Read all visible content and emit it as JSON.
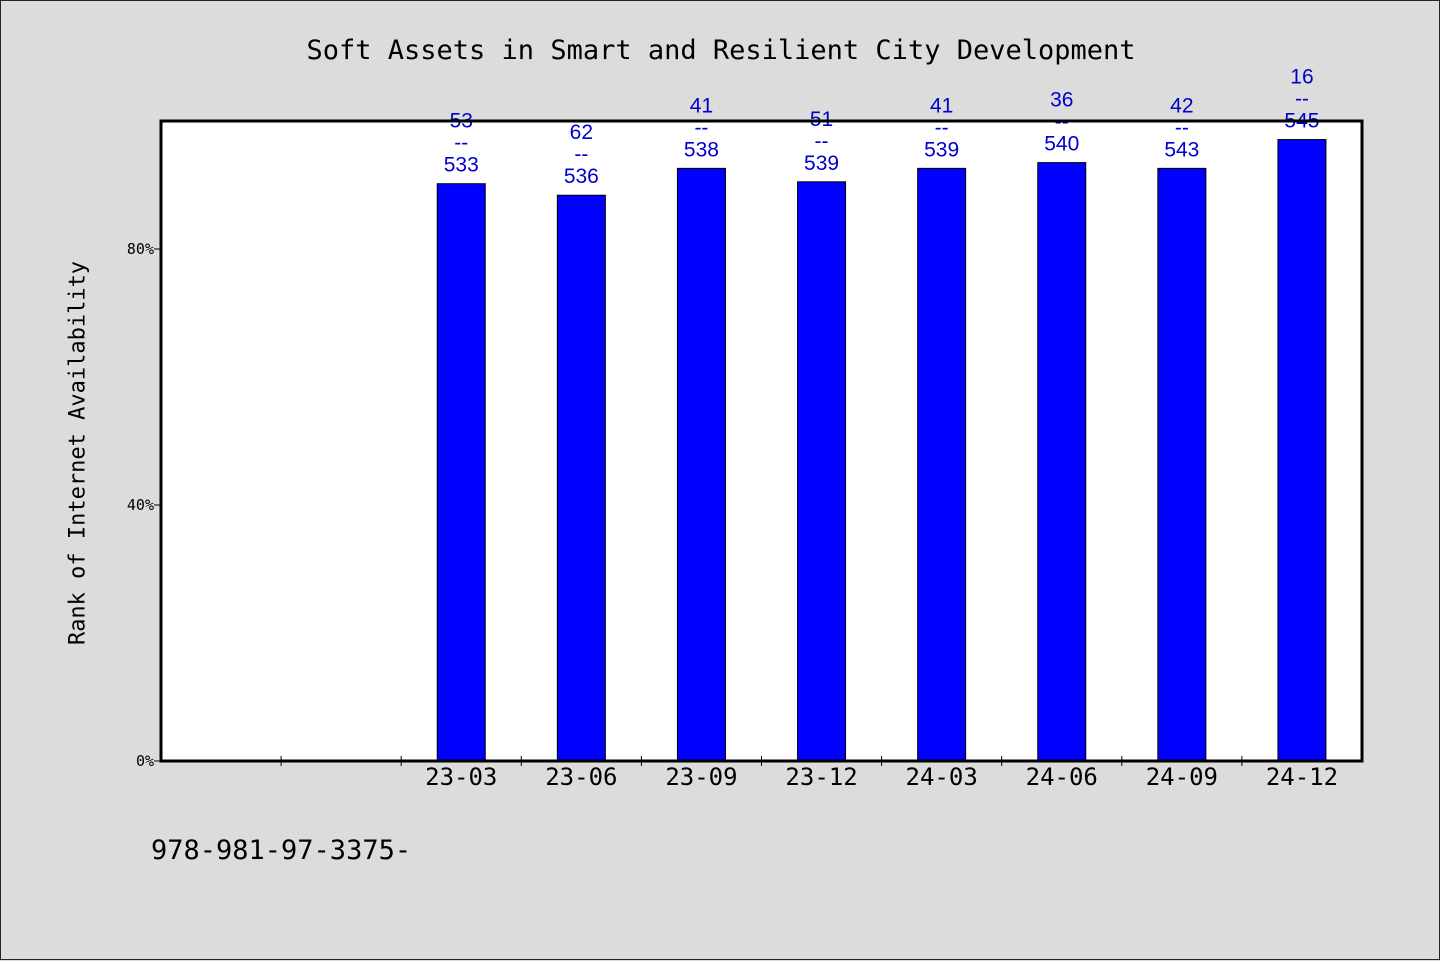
{
  "chart_data": {
    "type": "bar",
    "title": "Soft Assets in Smart and Resilient City Development",
    "xlabel": "",
    "ylabel": "Rank of Internet Availability",
    "ylim": [
      0,
      100
    ],
    "yticks": [
      {
        "value": 0,
        "label": "0%"
      },
      {
        "value": 40,
        "label": "40%"
      },
      {
        "value": 80,
        "label": "80%"
      }
    ],
    "categories": [
      "",
      "",
      "23-03",
      "23-06",
      "23-09",
      "23-12",
      "24-03",
      "24-06",
      "24-09",
      "24-12"
    ],
    "values": [
      null,
      null,
      90.2,
      88.4,
      92.6,
      90.5,
      92.6,
      93.5,
      92.6,
      97.1
    ],
    "data_labels": [
      null,
      null,
      [
        "53",
        "--",
        "533"
      ],
      [
        "62",
        "--",
        "536"
      ],
      [
        "41",
        "--",
        "538"
      ],
      [
        "51",
        "--",
        "539"
      ],
      [
        "41",
        "--",
        "539"
      ],
      [
        "36",
        "--",
        "540"
      ],
      [
        "42",
        "--",
        "543"
      ],
      [
        "16",
        "--",
        "545"
      ]
    ],
    "bar_color": "#0000ff",
    "label_color": "#0000cc",
    "grid": false,
    "legend": "none"
  },
  "footer": {
    "code": "978-981-97-3375-"
  }
}
